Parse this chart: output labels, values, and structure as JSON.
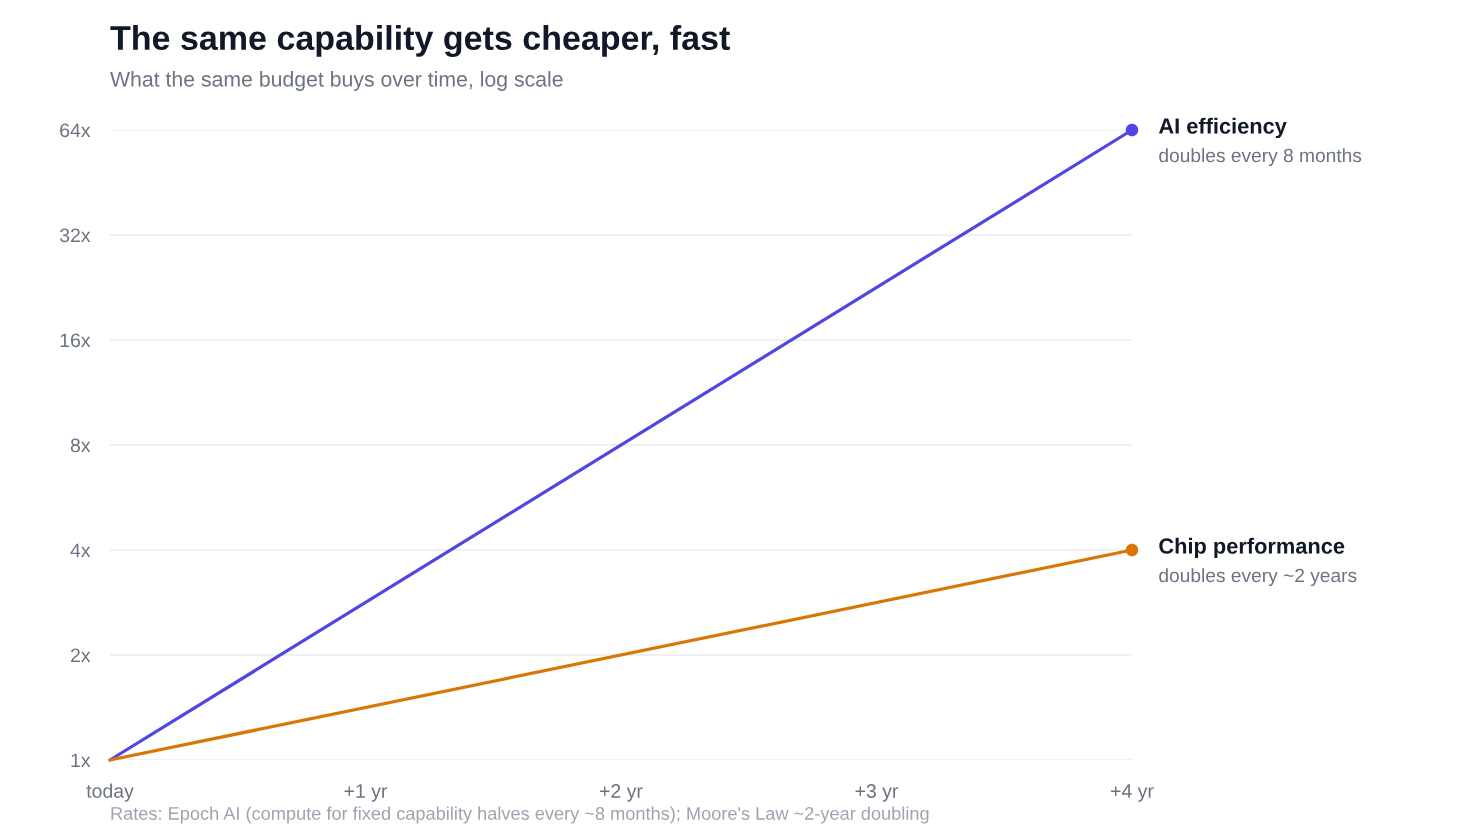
{
  "chart_data": {
    "type": "line",
    "title": "The same capability gets cheaper, fast",
    "subtitle": "What the same budget buys over time, log scale",
    "x": [
      0,
      4
    ],
    "series": [
      {
        "name": "AI efficiency",
        "color": "#4f46e5",
        "values": [
          1,
          64
        ]
      },
      {
        "name": "Chip performance",
        "color": "#d97706",
        "values": [
          1,
          4
        ]
      },
      {
        "type": "scatter",
        "marker": "circle",
        "color": "#4f46e5",
        "x": [
          4
        ],
        "values": [
          64
        ]
      },
      {
        "type": "scatter",
        "marker": "circle",
        "color": "#d97706",
        "x": [
          4
        ],
        "values": [
          4
        ]
      }
    ],
    "xlim": [
      0,
      4
    ],
    "xticks": [
      {
        "value": 0,
        "label": "today"
      },
      {
        "value": 1,
        "label": "+1 yr"
      },
      {
        "value": 2,
        "label": "+2 yr"
      },
      {
        "value": 3,
        "label": "+3 yr"
      },
      {
        "value": 4,
        "label": "+4 yr"
      }
    ],
    "ylim": [
      1,
      64
    ],
    "yticks": [
      {
        "value": 1,
        "label": "1x"
      },
      {
        "value": 2,
        "label": "2x"
      },
      {
        "value": 4,
        "label": "4x"
      },
      {
        "value": 8,
        "label": "8x"
      },
      {
        "value": 16,
        "label": "16x"
      },
      {
        "value": 32,
        "label": "32x"
      },
      {
        "value": 64,
        "label": "64x"
      }
    ],
    "log": "y",
    "grid": "y",
    "legend": false,
    "annotations": [
      {
        "text": "doubles every 8 months",
        "x": 4,
        "y": 64
      },
      {
        "text": "doubles every ~2 years",
        "x": 4,
        "y": 4
      },
      "Rates: Epoch AI (compute for fixed capability halves every ~8 months); Moore's Law ~2-year doubling"
    ]
  }
}
